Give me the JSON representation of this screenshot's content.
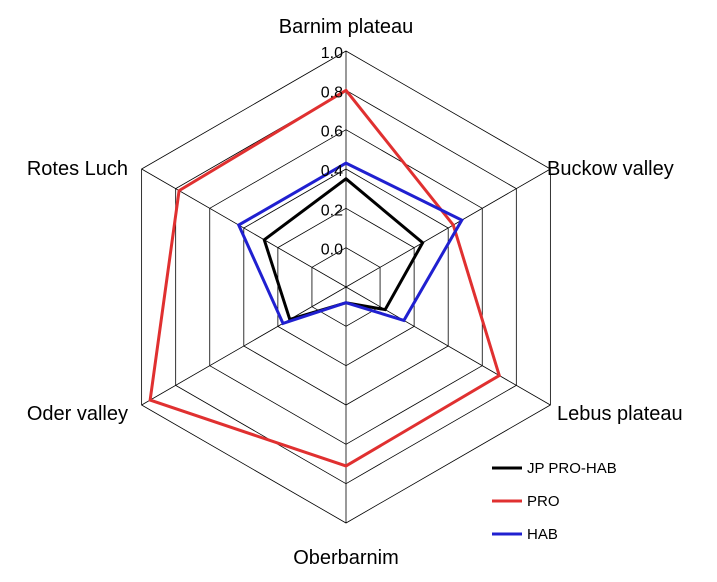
{
  "chart_data": {
    "type": "radar",
    "categories": [
      "Barnim plateau",
      "Buckow valley",
      "Lebus plateau",
      "Oberbarnim",
      "Oder valley",
      "Rotes Luch"
    ],
    "ticks": [
      "0.0",
      "0.2",
      "0.4",
      "0.6",
      "0.8",
      "1.0"
    ],
    "rlim": [
      -0.2,
      1.0
    ],
    "grid": true,
    "legend_position": "bottom-right",
    "series": [
      {
        "name": "JP PRO-HAB",
        "color": "#000000",
        "values": [
          0.35,
          0.25,
          0.03,
          -0.12,
          0.13,
          0.28
        ]
      },
      {
        "name": "PRO",
        "color": "#e03030",
        "values": [
          0.8,
          0.43,
          0.7,
          0.71,
          0.95,
          0.78
        ]
      },
      {
        "name": "HAB",
        "color": "#2020d0",
        "values": [
          0.43,
          0.48,
          0.14,
          -0.12,
          0.17,
          0.43
        ]
      }
    ]
  }
}
